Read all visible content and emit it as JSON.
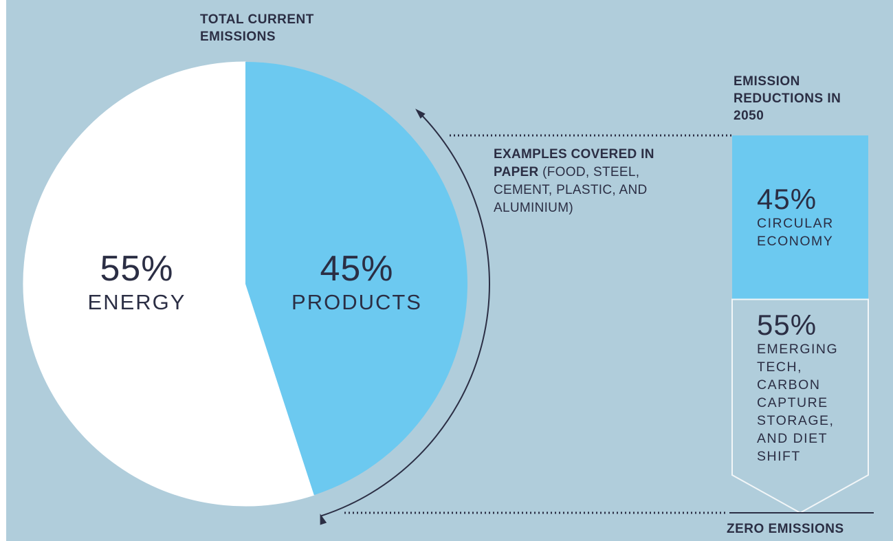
{
  "chart_data": {
    "type": "pie",
    "title": "TOTAL CURRENT EMISSIONS",
    "slices": [
      {
        "label": "PRODUCTS",
        "value": 45,
        "display": "45%",
        "color": "#6cc9f0"
      },
      {
        "label": "ENERGY",
        "value": 55,
        "display": "55%",
        "color": "#ffffff"
      }
    ],
    "annotation": {
      "bold": "EXAMPLES COVERED IN PAPER",
      "rest": " (FOOD, STEEL, CEMENT, PLASTIC, AND ALUMINIUM)"
    },
    "reductions": {
      "title": "EMISSION REDUCTIONS IN 2050",
      "segments": [
        {
          "value": 45,
          "display": "45%",
          "label": "CIRCULAR ECONOMY",
          "color": "#6cc9f0"
        },
        {
          "value": 55,
          "display": "55%",
          "label": "EMERGING TECH, CARBON CAPTURE STORAGE, AND DIET SHIFT",
          "color": "#b0cddb"
        }
      ],
      "bottom_label": "ZERO EMISSIONS"
    }
  },
  "colors": {
    "background": "#b0cddb",
    "text": "#2b2e44",
    "products": "#6cc9f0",
    "energy": "#ffffff"
  }
}
